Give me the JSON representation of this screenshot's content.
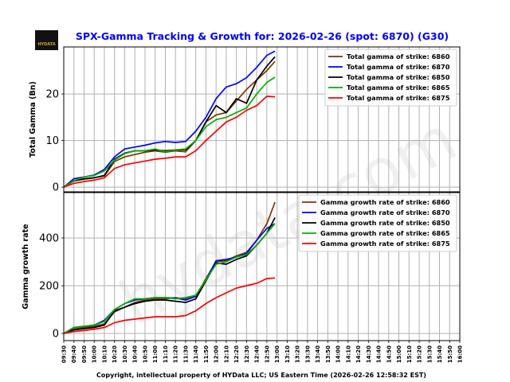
{
  "title": "SPX-Gamma Tracking & Growth for: 2026-02-26 (spot: 6870) (G30)",
  "logo_text": "HYDATA",
  "watermark": "hydata.com",
  "footer": "Copyright, intellectual property of HYData LLC; US Eastern Time (2026-02-26 12:58:32 EST)",
  "chart_data": [
    {
      "type": "line",
      "ylabel": "Total Gamma (Bn)",
      "ylim": [
        -1,
        30.1
      ],
      "yticks": [
        0,
        10,
        20
      ],
      "grid": true,
      "legend_position": "top-right",
      "x": [
        "09:30",
        "09:40",
        "09:50",
        "10:00",
        "10:10",
        "10:20",
        "10:30",
        "10:40",
        "10:50",
        "11:00",
        "11:10",
        "11:20",
        "11:30",
        "11:40",
        "11:50",
        "12:00",
        "12:10",
        "12:20",
        "12:30",
        "12:40",
        "12:50",
        "12:58"
      ],
      "series": [
        {
          "name": "Total gamma of strike: 6860",
          "color": "#7f3300",
          "values": [
            0,
            1.3,
            1.7,
            2.0,
            2.4,
            5.5,
            6.5,
            7.0,
            7.5,
            7.8,
            7.5,
            7.8,
            7.6,
            10,
            14,
            15.5,
            16,
            18.5,
            21,
            23,
            25,
            27
          ]
        },
        {
          "name": "Total gamma of strike: 6870",
          "color": "#0000ff",
          "values": [
            0,
            1.8,
            2.2,
            2.6,
            3.8,
            6.5,
            8.2,
            8.6,
            9.0,
            9.5,
            9.8,
            9.6,
            9.8,
            12,
            15,
            19,
            21.5,
            22.2,
            23.5,
            25.7,
            28.3,
            29.2
          ]
        },
        {
          "name": "Total gamma of strike: 6850",
          "color": "#000000",
          "values": [
            0,
            1.4,
            1.8,
            2.0,
            2.5,
            6.0,
            7.3,
            7.8,
            7.8,
            8.0,
            7.8,
            8.0,
            8.0,
            10,
            14,
            17.5,
            16,
            19,
            18,
            23,
            26,
            28
          ]
        },
        {
          "name": "Total gamma of strike: 6865",
          "color": "#00b000",
          "values": [
            0,
            1.4,
            2.2,
            2.5,
            3.5,
            5.8,
            7.2,
            7.8,
            7.8,
            8.2,
            7.6,
            8.0,
            8.2,
            10,
            13,
            14.5,
            15,
            16,
            17,
            20,
            22.5,
            23.6
          ]
        },
        {
          "name": "Total gamma of strike: 6875",
          "color": "#ff0000",
          "values": [
            0,
            0.8,
            1.2,
            1.5,
            2.0,
            4.0,
            4.8,
            5.2,
            5.6,
            6.0,
            6.2,
            6.5,
            6.5,
            7.8,
            10,
            12,
            14,
            15,
            16.5,
            17.5,
            19.5,
            19.4
          ]
        }
      ]
    },
    {
      "type": "line",
      "ylabel": "Gamma growth rate",
      "ylim": [
        -30,
        590
      ],
      "yticks": [
        0,
        200,
        400
      ],
      "grid": true,
      "legend_position": "top-right",
      "xlabel_ticks": [
        "09:30",
        "09:40",
        "09:50",
        "10:00",
        "10:10",
        "10:20",
        "10:30",
        "10:40",
        "10:50",
        "11:00",
        "11:10",
        "11:20",
        "11:30",
        "11:40",
        "11:50",
        "12:00",
        "12:10",
        "12:20",
        "12:30",
        "12:40",
        "12:50",
        "13:00",
        "13:10",
        "13:20",
        "13:30",
        "13:40",
        "13:50",
        "14:00",
        "14:10",
        "14:20",
        "14:30",
        "14:40",
        "14:50",
        "15:00",
        "15:10",
        "15:20",
        "15:30",
        "15:40",
        "15:50",
        "16:00"
      ],
      "x": [
        "09:30",
        "09:40",
        "09:50",
        "10:00",
        "10:10",
        "10:20",
        "10:30",
        "10:40",
        "10:50",
        "11:00",
        "11:10",
        "11:20",
        "11:30",
        "11:40",
        "11:50",
        "12:00",
        "12:10",
        "12:20",
        "12:30",
        "12:40",
        "12:50",
        "12:58"
      ],
      "series": [
        {
          "name": "Gamma growth rate of strike: 6860",
          "color": "#7f3300",
          "values": [
            0,
            18,
            25,
            30,
            40,
            90,
            110,
            130,
            140,
            145,
            145,
            150,
            145,
            155,
            230,
            300,
            305,
            325,
            340,
            390,
            460,
            550
          ]
        },
        {
          "name": "Gamma growth rate of strike: 6870",
          "color": "#0000ff",
          "values": [
            0,
            25,
            30,
            35,
            55,
            100,
            125,
            140,
            145,
            150,
            150,
            148,
            140,
            155,
            225,
            305,
            310,
            320,
            335,
            390,
            440,
            460
          ]
        },
        {
          "name": "Gamma growth rate of strike: 6850",
          "color": "#000000",
          "values": [
            0,
            15,
            20,
            25,
            35,
            95,
            110,
            125,
            135,
            140,
            140,
            135,
            130,
            145,
            220,
            295,
            290,
            310,
            325,
            370,
            420,
            485
          ]
        },
        {
          "name": "Gamma growth rate of strike: 6865",
          "color": "#00b000",
          "values": [
            0,
            25,
            30,
            35,
            50,
            100,
            125,
            145,
            145,
            150,
            150,
            145,
            150,
            160,
            225,
            290,
            300,
            320,
            330,
            370,
            420,
            460
          ]
        },
        {
          "name": "Gamma growth rate of strike: 6875",
          "color": "#ff0000",
          "values": [
            0,
            8,
            12,
            18,
            25,
            45,
            55,
            60,
            65,
            70,
            70,
            70,
            75,
            95,
            125,
            150,
            170,
            190,
            200,
            210,
            230,
            232
          ]
        }
      ]
    }
  ]
}
